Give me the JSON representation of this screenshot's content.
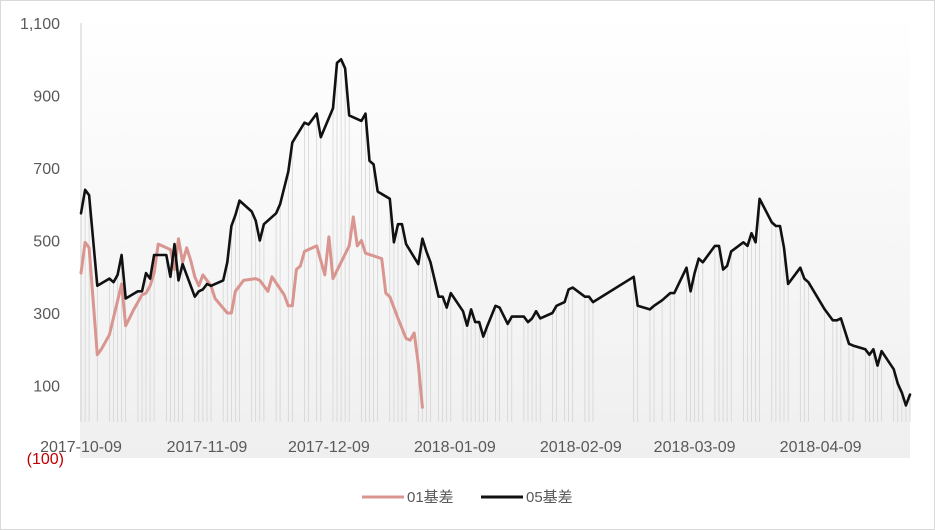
{
  "chart_data": {
    "type": "line",
    "title": "",
    "xlabel": "",
    "ylabel": "",
    "ylim": [
      -100,
      1100
    ],
    "yticks": [
      {
        "value": 1100,
        "label": "1,100"
      },
      {
        "value": 900,
        "label": "900"
      },
      {
        "value": 700,
        "label": "700"
      },
      {
        "value": 500,
        "label": "500"
      },
      {
        "value": 300,
        "label": "300"
      },
      {
        "value": 100,
        "label": "100"
      },
      {
        "value": -100,
        "label": "(100)"
      }
    ],
    "xticks": [
      {
        "x": 0,
        "label": "2017-10-09"
      },
      {
        "x": 31,
        "label": "2017-11-09"
      },
      {
        "x": 61,
        "label": "2017-12-09"
      },
      {
        "x": 92,
        "label": "2018-01-09"
      },
      {
        "x": 123,
        "label": "2018-02-09"
      },
      {
        "x": 151,
        "label": "2018-03-09"
      },
      {
        "x": 182,
        "label": "2018-04-09"
      }
    ],
    "x_unit": "days since 2017-10-09",
    "legend_position": "bottom",
    "colors": {
      "01基差": "#d9958f",
      "05基差": "#111111",
      "grid": "#d0d0d0",
      "negative_label": "#c00000"
    },
    "series": [
      {
        "name": "01基差",
        "points": [
          [
            0,
            410
          ],
          [
            1,
            495
          ],
          [
            2,
            480
          ],
          [
            4,
            185
          ],
          [
            5,
            200
          ],
          [
            7,
            240
          ],
          [
            10,
            380
          ],
          [
            11,
            265
          ],
          [
            13,
            310
          ],
          [
            14,
            330
          ],
          [
            15,
            350
          ],
          [
            16,
            355
          ],
          [
            17,
            375
          ],
          [
            18,
            410
          ],
          [
            19,
            490
          ],
          [
            20,
            485
          ],
          [
            22,
            475
          ],
          [
            23,
            420
          ],
          [
            24,
            505
          ],
          [
            25,
            440
          ],
          [
            26,
            480
          ],
          [
            27,
            445
          ],
          [
            28,
            400
          ],
          [
            29,
            375
          ],
          [
            30,
            405
          ],
          [
            32,
            375
          ],
          [
            33,
            340
          ],
          [
            36,
            300
          ],
          [
            37,
            300
          ],
          [
            38,
            360
          ],
          [
            39,
            375
          ],
          [
            40,
            390
          ],
          [
            43,
            395
          ],
          [
            44,
            390
          ],
          [
            46,
            360
          ],
          [
            47,
            400
          ],
          [
            50,
            350
          ],
          [
            51,
            320
          ],
          [
            52,
            320
          ],
          [
            53,
            420
          ],
          [
            54,
            430
          ],
          [
            55,
            470
          ],
          [
            58,
            485
          ],
          [
            60,
            405
          ],
          [
            61,
            510
          ],
          [
            62,
            395
          ],
          [
            66,
            485
          ],
          [
            67,
            565
          ],
          [
            68,
            485
          ],
          [
            69,
            500
          ],
          [
            70,
            465
          ],
          [
            74,
            450
          ],
          [
            75,
            355
          ],
          [
            76,
            345
          ],
          [
            78,
            285
          ],
          [
            80,
            230
          ],
          [
            81,
            225
          ],
          [
            82,
            245
          ],
          [
            83,
            160
          ],
          [
            84,
            40
          ]
        ]
      },
      {
        "name": "05基差",
        "points": [
          [
            0,
            575
          ],
          [
            1,
            640
          ],
          [
            2,
            625
          ],
          [
            4,
            375
          ],
          [
            7,
            395
          ],
          [
            8,
            385
          ],
          [
            9,
            405
          ],
          [
            10,
            460
          ],
          [
            11,
            340
          ],
          [
            14,
            360
          ],
          [
            15,
            360
          ],
          [
            16,
            410
          ],
          [
            17,
            395
          ],
          [
            18,
            460
          ],
          [
            21,
            460
          ],
          [
            22,
            400
          ],
          [
            23,
            490
          ],
          [
            24,
            390
          ],
          [
            25,
            435
          ],
          [
            28,
            345
          ],
          [
            29,
            360
          ],
          [
            30,
            365
          ],
          [
            31,
            380
          ],
          [
            32,
            375
          ],
          [
            35,
            390
          ],
          [
            36,
            440
          ],
          [
            37,
            540
          ],
          [
            38,
            570
          ],
          [
            39,
            610
          ],
          [
            42,
            580
          ],
          [
            43,
            555
          ],
          [
            44,
            500
          ],
          [
            45,
            545
          ],
          [
            48,
            575
          ],
          [
            49,
            600
          ],
          [
            51,
            690
          ],
          [
            52,
            770
          ],
          [
            55,
            825
          ],
          [
            56,
            820
          ],
          [
            58,
            850
          ],
          [
            59,
            785
          ],
          [
            62,
            865
          ],
          [
            63,
            990
          ],
          [
            64,
            1000
          ],
          [
            65,
            975
          ],
          [
            66,
            845
          ],
          [
            69,
            830
          ],
          [
            70,
            850
          ],
          [
            71,
            720
          ],
          [
            72,
            710
          ],
          [
            73,
            635
          ],
          [
            76,
            615
          ],
          [
            77,
            495
          ],
          [
            78,
            545
          ],
          [
            79,
            545
          ],
          [
            80,
            490
          ],
          [
            83,
            435
          ],
          [
            84,
            505
          ],
          [
            85,
            470
          ],
          [
            86,
            440
          ],
          [
            88,
            345
          ],
          [
            89,
            345
          ],
          [
            90,
            315
          ],
          [
            91,
            355
          ],
          [
            94,
            305
          ],
          [
            95,
            265
          ],
          [
            96,
            310
          ],
          [
            97,
            275
          ],
          [
            98,
            275
          ],
          [
            99,
            235
          ],
          [
            100,
            265
          ],
          [
            102,
            320
          ],
          [
            103,
            315
          ],
          [
            105,
            270
          ],
          [
            106,
            290
          ],
          [
            109,
            290
          ],
          [
            110,
            275
          ],
          [
            111,
            285
          ],
          [
            112,
            305
          ],
          [
            113,
            285
          ],
          [
            116,
            300
          ],
          [
            117,
            320
          ],
          [
            119,
            330
          ],
          [
            120,
            365
          ],
          [
            121,
            370
          ],
          [
            124,
            345
          ],
          [
            125,
            345
          ],
          [
            126,
            330
          ],
          [
            136,
            400
          ],
          [
            137,
            320
          ],
          [
            140,
            310
          ],
          [
            141,
            320
          ],
          [
            143,
            335
          ],
          [
            145,
            355
          ],
          [
            146,
            355
          ],
          [
            149,
            425
          ],
          [
            150,
            360
          ],
          [
            151,
            410
          ],
          [
            152,
            450
          ],
          [
            153,
            440
          ],
          [
            156,
            485
          ],
          [
            157,
            485
          ],
          [
            158,
            420
          ],
          [
            159,
            430
          ],
          [
            160,
            470
          ],
          [
            163,
            495
          ],
          [
            164,
            485
          ],
          [
            165,
            520
          ],
          [
            166,
            495
          ],
          [
            167,
            615
          ],
          [
            170,
            550
          ],
          [
            171,
            540
          ],
          [
            172,
            540
          ],
          [
            173,
            480
          ],
          [
            174,
            380
          ],
          [
            177,
            425
          ],
          [
            178,
            395
          ],
          [
            179,
            385
          ],
          [
            183,
            310
          ],
          [
            185,
            280
          ],
          [
            186,
            280
          ],
          [
            187,
            285
          ],
          [
            189,
            215
          ],
          [
            190,
            210
          ],
          [
            193,
            200
          ],
          [
            194,
            185
          ],
          [
            195,
            200
          ],
          [
            196,
            155
          ],
          [
            197,
            195
          ],
          [
            200,
            145
          ],
          [
            201,
            105
          ],
          [
            202,
            80
          ],
          [
            203,
            45
          ],
          [
            204,
            75
          ]
        ]
      }
    ]
  }
}
